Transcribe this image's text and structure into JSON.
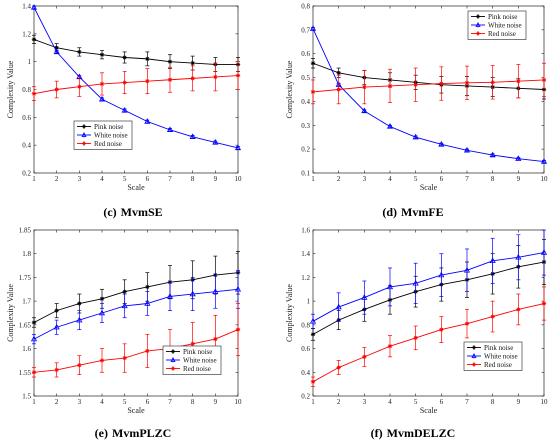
{
  "chart_data": [
    {
      "type": "line",
      "caption_letter": "(c)",
      "caption_name": "MvmSE",
      "xlabel": "Scale",
      "ylabel": "Complexity Value",
      "xlim": [
        1,
        10
      ],
      "ylim": [
        0.2,
        1.4
      ],
      "xticks": [
        1,
        2,
        3,
        4,
        5,
        6,
        7,
        8,
        9,
        10
      ],
      "yticks": [
        0.2,
        0.4,
        0.6,
        0.8,
        1,
        1.2,
        1.4
      ],
      "ytick_labels": [
        "0.2",
        "0.4",
        "0.6",
        "0.8",
        "1",
        "1.2",
        "1.4"
      ],
      "legend_position": "middle-right",
      "series": [
        {
          "name": "Pink noise",
          "color": "#000000",
          "marker": "star",
          "x": [
            1,
            2,
            3,
            4,
            5,
            6,
            7,
            8,
            9,
            10
          ],
          "values": [
            1.16,
            1.1,
            1.07,
            1.05,
            1.03,
            1.02,
            1.0,
            0.99,
            0.98,
            0.98
          ],
          "errors": [
            0.03,
            0.03,
            0.03,
            0.03,
            0.04,
            0.05,
            0.05,
            0.05,
            0.05,
            0.05
          ]
        },
        {
          "name": "White noise",
          "color": "#0000ff",
          "marker": "triangle",
          "x": [
            1,
            2,
            3,
            4,
            5,
            6,
            7,
            8,
            9,
            10
          ],
          "values": [
            1.39,
            1.07,
            0.89,
            0.73,
            0.65,
            0.57,
            0.51,
            0.46,
            0.42,
            0.38
          ],
          "errors": [
            0.01,
            0.01,
            0.01,
            0.01,
            0.01,
            0.01,
            0.01,
            0.01,
            0.01,
            0.01
          ]
        },
        {
          "name": "Red noise",
          "color": "#ff0000",
          "marker": "star",
          "x": [
            1,
            2,
            3,
            4,
            5,
            6,
            7,
            8,
            9,
            10
          ],
          "values": [
            0.77,
            0.8,
            0.82,
            0.84,
            0.85,
            0.86,
            0.87,
            0.88,
            0.89,
            0.9
          ],
          "errors": [
            0.05,
            0.06,
            0.07,
            0.08,
            0.08,
            0.09,
            0.09,
            0.09,
            0.1,
            0.1
          ]
        }
      ]
    },
    {
      "type": "line",
      "caption_letter": "(d)",
      "caption_name": "MvmFE",
      "xlabel": "Scale",
      "ylabel": "Complexity Value",
      "xlim": [
        1,
        10
      ],
      "ylim": [
        0.1,
        0.8
      ],
      "xticks": [
        1,
        2,
        3,
        4,
        5,
        6,
        7,
        8,
        9,
        10
      ],
      "yticks": [
        0.1,
        0.2,
        0.3,
        0.4,
        0.5,
        0.6,
        0.7,
        0.8
      ],
      "ytick_labels": [
        "0.1",
        "0.2",
        "0.3",
        "0.4",
        "0.5",
        "0.6",
        "0.7",
        "0.8"
      ],
      "legend_position": "top-right",
      "series": [
        {
          "name": "Pink noise",
          "color": "#000000",
          "marker": "star",
          "x": [
            1,
            2,
            3,
            4,
            5,
            6,
            7,
            8,
            9,
            10
          ],
          "values": [
            0.56,
            0.52,
            0.5,
            0.49,
            0.48,
            0.47,
            0.465,
            0.46,
            0.455,
            0.45
          ],
          "errors": [
            0.02,
            0.02,
            0.03,
            0.03,
            0.03,
            0.035,
            0.04,
            0.04,
            0.04,
            0.04
          ]
        },
        {
          "name": "White noise",
          "color": "#0000ff",
          "marker": "triangle",
          "x": [
            1,
            2,
            3,
            4,
            5,
            6,
            7,
            8,
            9,
            10
          ],
          "values": [
            0.705,
            0.47,
            0.36,
            0.295,
            0.25,
            0.22,
            0.195,
            0.175,
            0.16,
            0.148
          ],
          "errors": [
            0.005,
            0.005,
            0.005,
            0.005,
            0.005,
            0.005,
            0.005,
            0.005,
            0.005,
            0.005
          ]
        },
        {
          "name": "Red noise",
          "color": "#ff0000",
          "marker": "star",
          "x": [
            1,
            2,
            3,
            4,
            5,
            6,
            7,
            8,
            9,
            10
          ],
          "values": [
            0.44,
            0.45,
            0.46,
            0.465,
            0.47,
            0.475,
            0.478,
            0.48,
            0.485,
            0.49
          ],
          "errors": [
            0.05,
            0.06,
            0.07,
            0.07,
            0.07,
            0.07,
            0.07,
            0.07,
            0.07,
            0.07
          ]
        }
      ]
    },
    {
      "type": "line",
      "caption_letter": "(e)",
      "caption_name": "MvmPLZC",
      "xlabel": "Scale",
      "ylabel": "Complexity Value",
      "xlim": [
        1,
        10
      ],
      "ylim": [
        1.5,
        1.85
      ],
      "xticks": [
        1,
        2,
        3,
        4,
        5,
        6,
        7,
        8,
        9,
        10
      ],
      "yticks": [
        1.5,
        1.55,
        1.6,
        1.65,
        1.7,
        1.75,
        1.8,
        1.85
      ],
      "ytick_labels": [
        "1.5",
        "1.55",
        "1.6",
        "1.65",
        "1.7",
        "1.75",
        "1.8",
        "1.85"
      ],
      "legend_position": "bottom-right",
      "series": [
        {
          "name": "Pink noise",
          "color": "#000000",
          "marker": "star",
          "x": [
            1,
            2,
            3,
            4,
            5,
            6,
            7,
            8,
            9,
            10
          ],
          "values": [
            1.655,
            1.68,
            1.695,
            1.705,
            1.72,
            1.73,
            1.74,
            1.745,
            1.755,
            1.76
          ],
          "errors": [
            0.01,
            0.015,
            0.02,
            0.02,
            0.025,
            0.03,
            0.035,
            0.04,
            0.04,
            0.045
          ]
        },
        {
          "name": "White noise",
          "color": "#0000ff",
          "marker": "triangle",
          "x": [
            1,
            2,
            3,
            4,
            5,
            6,
            7,
            8,
            9,
            10
          ],
          "values": [
            1.62,
            1.645,
            1.66,
            1.675,
            1.69,
            1.695,
            1.71,
            1.715,
            1.72,
            1.725
          ],
          "errors": [
            0.01,
            0.015,
            0.02,
            0.02,
            0.025,
            0.025,
            0.03,
            0.035,
            0.035,
            0.04
          ]
        },
        {
          "name": "Red noise",
          "color": "#ff0000",
          "marker": "star",
          "x": [
            1,
            2,
            3,
            4,
            5,
            6,
            7,
            8,
            9,
            10
          ],
          "values": [
            1.55,
            1.555,
            1.565,
            1.575,
            1.58,
            1.595,
            1.6,
            1.61,
            1.62,
            1.64
          ],
          "errors": [
            0.01,
            0.015,
            0.02,
            0.025,
            0.03,
            0.035,
            0.04,
            0.045,
            0.05,
            0.055
          ]
        }
      ]
    },
    {
      "type": "line",
      "caption_letter": "(f)",
      "caption_name": "MvmDELZC",
      "xlabel": "Scale",
      "ylabel": "Complexity Value",
      "xlim": [
        1,
        10
      ],
      "ylim": [
        0.2,
        1.6
      ],
      "xticks": [
        1,
        2,
        3,
        4,
        5,
        6,
        7,
        8,
        9,
        10
      ],
      "yticks": [
        0.2,
        0.4,
        0.6,
        0.8,
        1,
        1.2,
        1.4,
        1.6
      ],
      "ytick_labels": [
        "0.2",
        "0.4",
        "0.6",
        "0.8",
        "1",
        "1.2",
        "1.4",
        "1.6"
      ],
      "legend_position": "bottom-right",
      "series": [
        {
          "name": "Pink noise",
          "color": "#000000",
          "marker": "star",
          "x": [
            1,
            2,
            3,
            4,
            5,
            6,
            7,
            8,
            9,
            10
          ],
          "values": [
            0.72,
            0.84,
            0.93,
            1.01,
            1.08,
            1.14,
            1.18,
            1.23,
            1.29,
            1.33
          ],
          "errors": [
            0.05,
            0.08,
            0.1,
            0.12,
            0.13,
            0.14,
            0.15,
            0.17,
            0.18,
            0.19
          ]
        },
        {
          "name": "White noise",
          "color": "#0000ff",
          "marker": "triangle",
          "x": [
            1,
            2,
            3,
            4,
            5,
            6,
            7,
            8,
            9,
            10
          ],
          "values": [
            0.83,
            0.95,
            1.03,
            1.12,
            1.15,
            1.22,
            1.26,
            1.34,
            1.37,
            1.41
          ],
          "errors": [
            0.06,
            0.12,
            0.14,
            0.16,
            0.17,
            0.18,
            0.18,
            0.19,
            0.19,
            0.19
          ]
        },
        {
          "name": "Red noise",
          "color": "#ff0000",
          "marker": "star",
          "x": [
            1,
            2,
            3,
            4,
            5,
            6,
            7,
            8,
            9,
            10
          ],
          "values": [
            0.32,
            0.44,
            0.53,
            0.62,
            0.69,
            0.76,
            0.81,
            0.87,
            0.93,
            0.98
          ],
          "errors": [
            0.04,
            0.06,
            0.08,
            0.09,
            0.1,
            0.11,
            0.12,
            0.13,
            0.13,
            0.14
          ]
        }
      ]
    }
  ]
}
